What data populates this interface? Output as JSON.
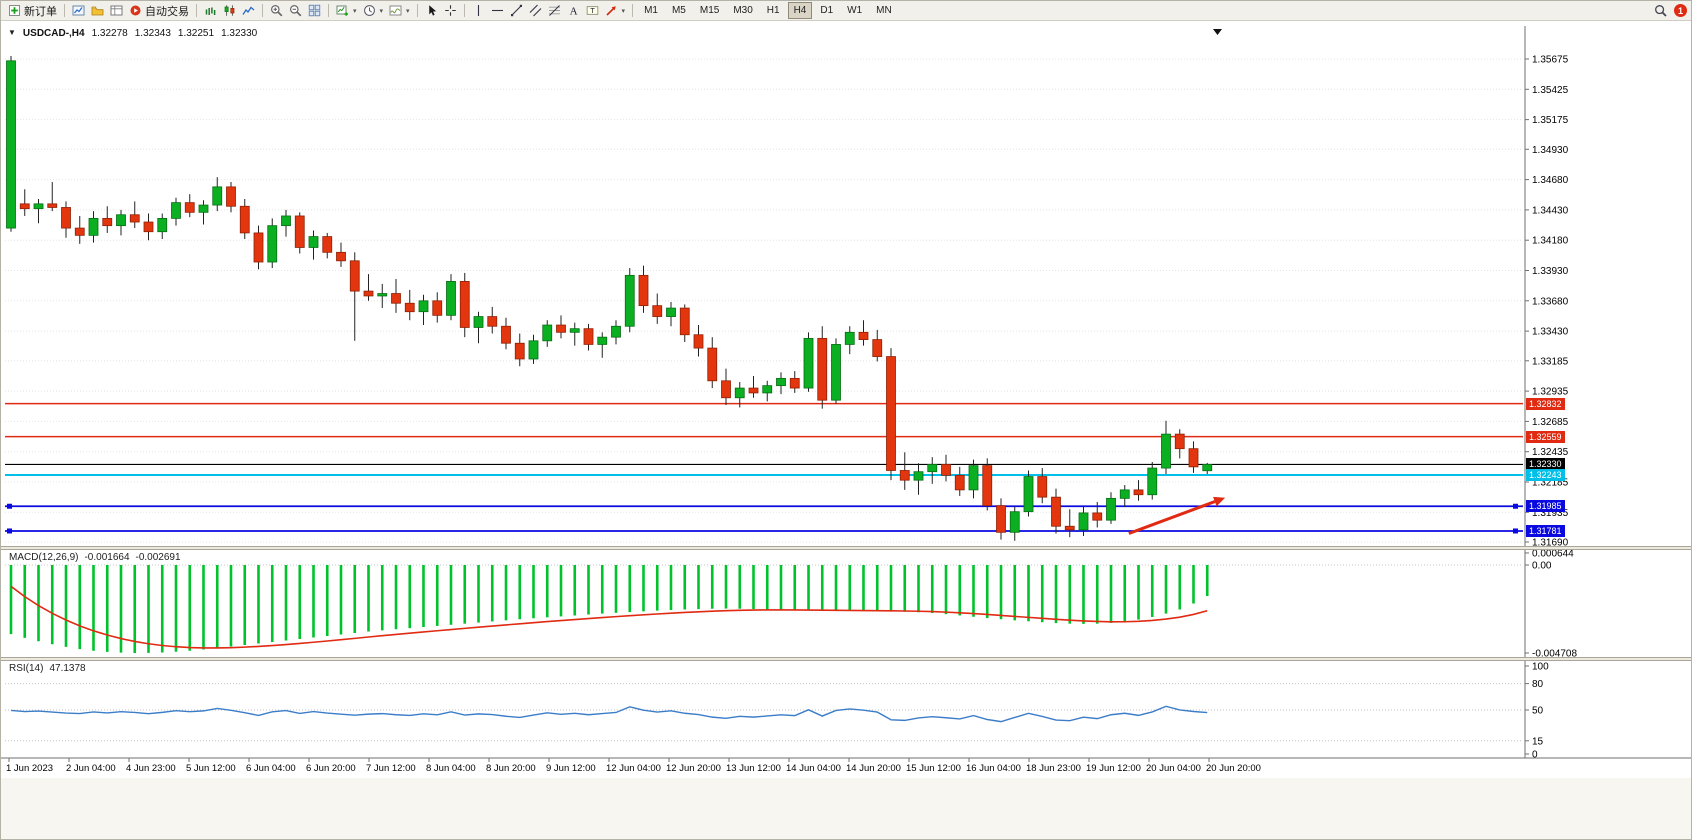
{
  "header": {
    "collapse_icon": "▼",
    "symbol": "USDCAD-,H4",
    "open": "1.32278",
    "high": "1.32343",
    "low": "1.32251",
    "close": "1.32330"
  },
  "toolbar": {
    "items": [
      {
        "name": "new-order",
        "icon": "new-order-icon",
        "label": "新订单"
      },
      {
        "sep": true
      },
      {
        "name": "charts-window",
        "icon": "chart-window-icon"
      },
      {
        "name": "profiles",
        "icon": "profiles-icon"
      },
      {
        "name": "data-window",
        "icon": "data-window-icon"
      },
      {
        "name": "auto-trading",
        "icon": "auto-trading-icon",
        "label": "自动交易"
      },
      {
        "sep": true
      },
      {
        "name": "bar-chart-mode",
        "icon": "bar-chart-icon"
      },
      {
        "name": "candlestick-mode",
        "icon": "candlestick-icon"
      },
      {
        "name": "line-chart-mode",
        "icon": "line-chart-icon"
      },
      {
        "sep": true
      },
      {
        "name": "zoom-in",
        "icon": "zoom-in-icon"
      },
      {
        "name": "zoom-out",
        "icon": "zoom-out-icon"
      },
      {
        "name": "tile-windows",
        "icon": "tile-windows-icon"
      },
      {
        "sep": true
      },
      {
        "name": "new-chart",
        "icon": "new-chart-icon",
        "dropdown": true
      },
      {
        "name": "periods",
        "icon": "clock-icon",
        "dropdown": true
      },
      {
        "name": "templates",
        "icon": "template-icon",
        "dropdown": true
      },
      {
        "sep": true
      },
      {
        "name": "cursor",
        "icon": "cursor-icon"
      },
      {
        "name": "crosshair",
        "icon": "crosshair-icon"
      },
      {
        "sep": true
      },
      {
        "name": "vertical-line",
        "icon": "vline-icon"
      },
      {
        "name": "horizontal-line",
        "icon": "hline-icon"
      },
      {
        "name": "trendline",
        "icon": "trendline-icon"
      },
      {
        "name": "equidistant-channel",
        "icon": "channel-icon"
      },
      {
        "name": "fibonacci",
        "icon": "fibonacci-icon"
      },
      {
        "name": "text",
        "icon": "text-icon"
      },
      {
        "name": "text-label",
        "icon": "label-icon"
      },
      {
        "name": "arrows",
        "icon": "arrow-tool-icon",
        "dropdown": true
      },
      {
        "sep": true
      }
    ],
    "timeframes": [
      "M1",
      "M5",
      "M15",
      "M30",
      "H1",
      "H4",
      "D1",
      "W1",
      "MN"
    ],
    "active_timeframe": "H4",
    "notification_badge": "1"
  },
  "hlines": [
    {
      "price": 1.32832,
      "label": "1.32832",
      "color": "#e02a12",
      "style": "solid",
      "width": 1.5,
      "role": "resistance-1"
    },
    {
      "price": 1.32559,
      "label": "1.32559",
      "color": "#e02a12",
      "style": "solid",
      "width": 1.5,
      "role": "resistance-2"
    },
    {
      "price": 1.3233,
      "label": "1.32330",
      "color": "#000000",
      "style": "solid",
      "width": 1.1,
      "role": "bid"
    },
    {
      "price": 1.32243,
      "label": "1.32243",
      "color": "#00c0ea",
      "style": "solid",
      "width": 2,
      "role": "level-cyan"
    },
    {
      "price": 1.31985,
      "label": "1.31985",
      "color": "#0a0ae0",
      "style": "solid",
      "width": 1.8,
      "handles": true,
      "role": "support-1"
    },
    {
      "price": 1.31781,
      "label": "1.31781",
      "color": "#0a0ae0",
      "style": "solid",
      "width": 1.8,
      "handles": true,
      "role": "support-2"
    }
  ],
  "trend_arrow": {
    "from_bar": 81.3,
    "from_price": 1.3176,
    "to_bar": 88.3,
    "to_price": 1.32055,
    "color": "#e02a12"
  },
  "macd": {
    "label": "MACD(12,26,9)",
    "value": "-0.001664",
    "signal_value": "-0.002691",
    "ticks": [
      "0.000644",
      "0.00",
      "-0.004708"
    ],
    "tick_values": [
      0.000644,
      0,
      -0.004708
    ]
  },
  "rsi": {
    "label": "RSI(14)",
    "value": "47.1378",
    "ticks": [
      "100",
      "80",
      "50",
      "15",
      "0"
    ],
    "tick_values": [
      100,
      80,
      50,
      15,
      0
    ],
    "levels": [
      80,
      50,
      15
    ]
  },
  "chart_data": [
    {
      "type": "candlestick",
      "name": "USDCAD-,H4",
      "ylim": [
        1.3169,
        1.35675
      ],
      "up_color": "#0ab021",
      "down_color": "#e3360e",
      "wick_color": "#222222",
      "y_tick_labels": [
        "1.35675",
        "1.35425",
        "1.35175",
        "1.34930",
        "1.34680",
        "1.34430",
        "1.34180",
        "1.33930",
        "1.33680",
        "1.33430",
        "1.33185",
        "1.32935",
        "1.32685",
        "1.32435",
        "1.32185",
        "1.31935",
        "1.31690"
      ],
      "x_labels": [
        "1 Jun 2023",
        "2 Jun 04:00",
        "4 Jun 23:00",
        "5 Jun 12:00",
        "6 Jun 04:00",
        "6 Jun 20:00",
        "7 Jun 12:00",
        "8 Jun 04:00",
        "8 Jun 20:00",
        "9 Jun 12:00",
        "12 Jun 04:00",
        "12 Jun 20:00",
        "13 Jun 12:00",
        "14 Jun 04:00",
        "14 Jun 20:00",
        "15 Jun 12:00",
        "16 Jun 04:00",
        "18 Jun 23:00",
        "19 Jun 12:00",
        "20 Jun 04:00",
        "20 Jun 20:00"
      ],
      "ohlc": [
        [
          1.3428,
          1.357,
          1.3425,
          1.3566
        ],
        [
          1.3448,
          1.346,
          1.3438,
          1.3444
        ],
        [
          1.3444,
          1.3452,
          1.3432,
          1.3448
        ],
        [
          1.3448,
          1.3466,
          1.3442,
          1.3445
        ],
        [
          1.3445,
          1.345,
          1.342,
          1.3428
        ],
        [
          1.3428,
          1.3438,
          1.3415,
          1.3422
        ],
        [
          1.3422,
          1.3442,
          1.3416,
          1.3436
        ],
        [
          1.3436,
          1.3446,
          1.3424,
          1.343
        ],
        [
          1.343,
          1.3443,
          1.3422,
          1.3439
        ],
        [
          1.3439,
          1.345,
          1.3428,
          1.3433
        ],
        [
          1.3433,
          1.344,
          1.3418,
          1.3425
        ],
        [
          1.3425,
          1.344,
          1.3419,
          1.3436
        ],
        [
          1.3436,
          1.3453,
          1.343,
          1.3449
        ],
        [
          1.3449,
          1.3456,
          1.3437,
          1.3441
        ],
        [
          1.3441,
          1.3451,
          1.3431,
          1.3447
        ],
        [
          1.3447,
          1.347,
          1.3442,
          1.3462
        ],
        [
          1.3462,
          1.3466,
          1.3441,
          1.3446
        ],
        [
          1.3446,
          1.3452,
          1.3419,
          1.3424
        ],
        [
          1.3424,
          1.343,
          1.3394,
          1.34
        ],
        [
          1.34,
          1.3436,
          1.3395,
          1.343
        ],
        [
          1.343,
          1.3443,
          1.3421,
          1.3438
        ],
        [
          1.3438,
          1.3441,
          1.3407,
          1.3412
        ],
        [
          1.3412,
          1.3426,
          1.3402,
          1.3421
        ],
        [
          1.3421,
          1.3424,
          1.3403,
          1.3408
        ],
        [
          1.3408,
          1.3416,
          1.3396,
          1.3401
        ],
        [
          1.3401,
          1.3408,
          1.3335,
          1.3376
        ],
        [
          1.3376,
          1.339,
          1.3368,
          1.3372
        ],
        [
          1.3372,
          1.3382,
          1.3362,
          1.3374
        ],
        [
          1.3374,
          1.3386,
          1.3358,
          1.3366
        ],
        [
          1.3366,
          1.3377,
          1.3352,
          1.3359
        ],
        [
          1.3359,
          1.3373,
          1.3348,
          1.3368
        ],
        [
          1.3368,
          1.3375,
          1.335,
          1.3356
        ],
        [
          1.3356,
          1.339,
          1.3352,
          1.3384
        ],
        [
          1.3384,
          1.3391,
          1.3338,
          1.3346
        ],
        [
          1.3346,
          1.3359,
          1.3333,
          1.3355
        ],
        [
          1.3355,
          1.3363,
          1.3341,
          1.3347
        ],
        [
          1.3347,
          1.3354,
          1.3328,
          1.3333
        ],
        [
          1.3333,
          1.3341,
          1.3314,
          1.332
        ],
        [
          1.332,
          1.334,
          1.3316,
          1.3335
        ],
        [
          1.3335,
          1.3352,
          1.333,
          1.3348
        ],
        [
          1.3348,
          1.3356,
          1.3337,
          1.3342
        ],
        [
          1.3342,
          1.335,
          1.3331,
          1.3345
        ],
        [
          1.3345,
          1.3349,
          1.3327,
          1.3332
        ],
        [
          1.3332,
          1.3342,
          1.3321,
          1.3338
        ],
        [
          1.3338,
          1.3352,
          1.3332,
          1.3347
        ],
        [
          1.3347,
          1.3395,
          1.3342,
          1.3389
        ],
        [
          1.3389,
          1.3397,
          1.3358,
          1.3364
        ],
        [
          1.3364,
          1.3374,
          1.3349,
          1.3355
        ],
        [
          1.3355,
          1.3367,
          1.3347,
          1.3362
        ],
        [
          1.3362,
          1.3365,
          1.3334,
          1.334
        ],
        [
          1.334,
          1.3348,
          1.3322,
          1.3329
        ],
        [
          1.3329,
          1.3338,
          1.3296,
          1.3302
        ],
        [
          1.3302,
          1.3312,
          1.3282,
          1.3288
        ],
        [
          1.3288,
          1.3301,
          1.328,
          1.3296
        ],
        [
          1.3296,
          1.3306,
          1.3288,
          1.3292
        ],
        [
          1.3292,
          1.3302,
          1.3285,
          1.3298
        ],
        [
          1.3298,
          1.3309,
          1.3291,
          1.3304
        ],
        [
          1.3304,
          1.331,
          1.3292,
          1.3296
        ],
        [
          1.3296,
          1.3342,
          1.3293,
          1.3337
        ],
        [
          1.3337,
          1.3347,
          1.3279,
          1.3286
        ],
        [
          1.3286,
          1.3337,
          1.3283,
          1.3332
        ],
        [
          1.3332,
          1.3347,
          1.3324,
          1.3342
        ],
        [
          1.3342,
          1.3352,
          1.3331,
          1.3336
        ],
        [
          1.3336,
          1.3344,
          1.3318,
          1.3322
        ],
        [
          1.3322,
          1.3329,
          1.322,
          1.3228
        ],
        [
          1.3228,
          1.3243,
          1.3212,
          1.322
        ],
        [
          1.322,
          1.3234,
          1.3208,
          1.3227
        ],
        [
          1.3227,
          1.3239,
          1.3217,
          1.3233
        ],
        [
          1.3233,
          1.3241,
          1.3219,
          1.3224
        ],
        [
          1.3224,
          1.3231,
          1.3207,
          1.3212
        ],
        [
          1.3212,
          1.3237,
          1.3205,
          1.3232
        ],
        [
          1.3232,
          1.3238,
          1.3195,
          1.3199
        ],
        [
          1.3199,
          1.3205,
          1.3171,
          1.3177
        ],
        [
          1.3177,
          1.3198,
          1.317,
          1.3194
        ],
        [
          1.3194,
          1.3228,
          1.319,
          1.3223
        ],
        [
          1.3223,
          1.323,
          1.3201,
          1.3206
        ],
        [
          1.3206,
          1.3213,
          1.3176,
          1.3182
        ],
        [
          1.3182,
          1.3196,
          1.3173,
          1.3179
        ],
        [
          1.3179,
          1.3198,
          1.3174,
          1.3193
        ],
        [
          1.3193,
          1.3202,
          1.3181,
          1.3187
        ],
        [
          1.3187,
          1.321,
          1.3184,
          1.3205
        ],
        [
          1.3205,
          1.3216,
          1.3198,
          1.3212
        ],
        [
          1.3212,
          1.322,
          1.3203,
          1.3208
        ],
        [
          1.3208,
          1.3235,
          1.3204,
          1.323
        ],
        [
          1.323,
          1.3269,
          1.3225,
          1.3258
        ],
        [
          1.3258,
          1.3262,
          1.3238,
          1.3246
        ],
        [
          1.3246,
          1.3252,
          1.3226,
          1.3231
        ],
        [
          1.32278,
          1.32343,
          1.32251,
          1.3233
        ]
      ]
    },
    {
      "type": "bar",
      "name": "MACD(12,26,9)",
      "color": "#00c32b",
      "signal_color": "#e02a12",
      "signal_period": 9,
      "signal_seed": -0.0005,
      "ylim": [
        -0.004708,
        0.000644
      ],
      "values": [
        -0.0037,
        -0.0039,
        -0.00408,
        -0.00424,
        -0.00438,
        -0.0045,
        -0.00459,
        -0.00465,
        -0.00469,
        -0.00471,
        -0.0047,
        -0.00468,
        -0.00464,
        -0.00459,
        -0.00452,
        -0.00444,
        -0.00436,
        -0.00428,
        -0.0042,
        -0.00412,
        -0.00404,
        -0.00396,
        -0.00388,
        -0.0038,
        -0.00372,
        -0.00364,
        -0.00356,
        -0.0035,
        -0.00344,
        -0.00338,
        -0.00332,
        -0.00326,
        -0.0032,
        -0.00314,
        -0.00308,
        -0.00302,
        -0.00296,
        -0.0029,
        -0.00285,
        -0.0028,
        -0.00275,
        -0.0027,
        -0.00265,
        -0.0026,
        -0.00256,
        -0.00252,
        -0.00248,
        -0.00244,
        -0.00241,
        -0.00238,
        -0.00236,
        -0.00234,
        -0.00233,
        -0.00234,
        -0.00236,
        -0.00238,
        -0.0024,
        -0.00242,
        -0.00243,
        -0.00244,
        -0.00245,
        -0.00246,
        -0.00246,
        -0.00247,
        -0.00248,
        -0.0025,
        -0.00253,
        -0.00257,
        -0.00263,
        -0.0027,
        -0.00277,
        -0.00284,
        -0.0029,
        -0.00296,
        -0.00301,
        -0.00306,
        -0.00311,
        -0.00314,
        -0.00315,
        -0.00314,
        -0.0031,
        -0.00303,
        -0.00292,
        -0.00278,
        -0.0026,
        -0.00238,
        -0.00206,
        -0.00166
      ]
    },
    {
      "type": "line",
      "name": "RSI(14)",
      "color": "#3b7dc8",
      "ylim": [
        0,
        100
      ],
      "values": [
        49.5,
        48.2,
        48.8,
        47.6,
        46.5,
        45.9,
        47.8,
        46.7,
        48.1,
        47.2,
        45.8,
        47.3,
        49.2,
        48.1,
        49.0,
        51.8,
        49.6,
        46.9,
        43.8,
        47.9,
        49.4,
        46.1,
        48.2,
        46.5,
        45.2,
        44.1,
        45.3,
        45.9,
        44.6,
        43.8,
        45.7,
        44.5,
        47.9,
        44.2,
        45.6,
        44.8,
        42.9,
        41.5,
        44.3,
        46.8,
        45.1,
        46.2,
        44.6,
        46.0,
        47.2,
        53.6,
        49.8,
        47.7,
        49.1,
        46.3,
        44.8,
        41.9,
        40.6,
        42.8,
        41.9,
        43.2,
        44.5,
        43.6,
        50.2,
        43.1,
        49.5,
        51.2,
        49.8,
        47.6,
        38.9,
        38.2,
        41.0,
        42.4,
        41.2,
        39.8,
        43.7,
        39.2,
        36.8,
        41.5,
        46.2,
        42.7,
        38.6,
        37.9,
        41.8,
        40.2,
        44.6,
        46.3,
        43.9,
        47.8,
        54.2,
        50.1,
        48.3,
        47.1378
      ]
    }
  ]
}
